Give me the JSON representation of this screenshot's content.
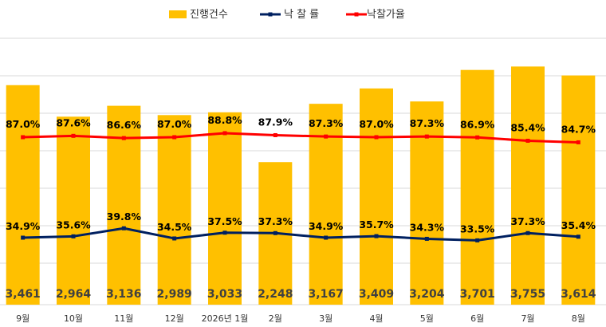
{
  "chart_data": {
    "type": "bar",
    "categories": [
      "9월",
      "10월",
      "11월",
      "12월",
      "2026년 1월",
      "2월",
      "3월",
      "4월",
      "5월",
      "6월",
      "7월",
      "8월"
    ],
    "series": [
      {
        "name": "진행건수",
        "type": "bar",
        "values": [
          3461,
          2964,
          3136,
          2989,
          3033,
          2248,
          3167,
          3409,
          3204,
          3701,
          3755,
          3614
        ],
        "labels": [
          "3,461",
          "2,964",
          "3,136",
          "2,989",
          "3,033",
          "2,248",
          "3,167",
          "3,409",
          "3,204",
          "3,701",
          "3,755",
          "3,614"
        ],
        "color": "#FFC000"
      },
      {
        "name": "낙 찰 률",
        "type": "line",
        "values": [
          34.9,
          35.6,
          39.8,
          34.5,
          37.5,
          37.3,
          34.9,
          35.7,
          34.3,
          33.5,
          37.3,
          35.4
        ],
        "labels": [
          "34.9%",
          "35.6%",
          "39.8%",
          "34.5%",
          "37.5%",
          "37.3%",
          "34.9%",
          "35.7%",
          "34.3%",
          "33.5%",
          "37.3%",
          "35.4%"
        ],
        "color": "#002060"
      },
      {
        "name": "낙찰가율",
        "type": "line",
        "values": [
          87.0,
          87.6,
          86.6,
          87.0,
          88.8,
          87.9,
          87.3,
          87.0,
          87.3,
          86.9,
          85.4,
          84.7
        ],
        "labels": [
          "87.0%",
          "87.6%",
          "86.6%",
          "87.0%",
          "88.8%",
          "87.9%",
          "87.3%",
          "87.0%",
          "87.3%",
          "86.9%",
          "85.4%",
          "84.7%"
        ],
        "color": "#FF0000"
      }
    ],
    "legend_position": "top",
    "grid": true
  }
}
